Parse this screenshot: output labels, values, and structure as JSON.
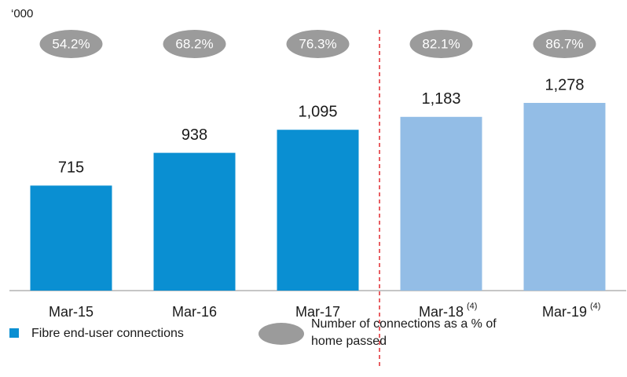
{
  "chart_data": {
    "type": "bar",
    "unit_label": "‘000",
    "categories": [
      "Mar-15",
      "Mar-16",
      "Mar-17",
      "Mar-18",
      "Mar-19"
    ],
    "category_notes": [
      null,
      null,
      null,
      "(4)",
      "(4)"
    ],
    "values": [
      715,
      938,
      1095,
      1183,
      1278
    ],
    "value_labels": [
      "715",
      "938",
      "1,095",
      "1,183",
      "1,278"
    ],
    "colors": [
      "#0a8fd2",
      "#0a8fd2",
      "#0a8fd2",
      "#93bde6",
      "#93bde6"
    ],
    "percent_values": [
      54.2,
      68.2,
      76.3,
      82.1,
      86.7
    ],
    "percent_labels": [
      "54.2%",
      "68.2%",
      "76.3%",
      "82.1%",
      "86.7%"
    ],
    "percent_color": "#9b9b9b",
    "ylim": [
      0,
      1500
    ],
    "legend": [
      {
        "name": "Fibre end-user connections",
        "color": "#0a8fd2"
      },
      {
        "name": "Number of connections as a % of home passed",
        "color": "#9b9b9b"
      }
    ]
  }
}
